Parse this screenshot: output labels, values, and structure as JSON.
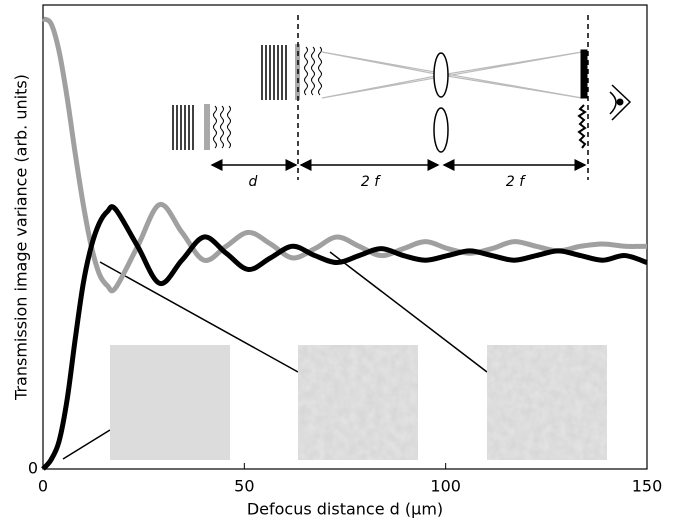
{
  "chart_data": {
    "type": "line",
    "x_label": "Defocus distance d (μm)",
    "y_label": "Transmission image variance (arb. units)",
    "x": [
      0,
      2,
      4,
      6,
      8,
      10,
      12,
      14,
      16,
      18,
      23.5,
      29,
      34.5,
      40,
      45.5,
      51,
      56.5,
      62,
      67.5,
      73,
      78.5,
      84,
      89.5,
      95,
      100.5,
      106,
      111.5,
      117,
      122.5,
      128,
      133.5,
      139,
      144.5,
      150
    ],
    "series": [
      {
        "color": "#000000",
        "values": [
          0,
          0.02,
          0.06,
          0.15,
          0.28,
          0.4,
          0.48,
          0.53,
          0.555,
          0.56,
          0.48,
          0.4,
          0.45,
          0.5,
          0.465,
          0.43,
          0.455,
          0.48,
          0.46,
          0.445,
          0.46,
          0.475,
          0.46,
          0.45,
          0.46,
          0.47,
          0.46,
          0.45,
          0.46,
          0.47,
          0.46,
          0.45,
          0.46,
          0.445
        ]
      },
      {
        "color": "#a0a0a0",
        "values": [
          0.97,
          0.96,
          0.9,
          0.8,
          0.68,
          0.57,
          0.48,
          0.42,
          0.395,
          0.39,
          0.48,
          0.57,
          0.51,
          0.45,
          0.48,
          0.51,
          0.485,
          0.455,
          0.475,
          0.5,
          0.48,
          0.46,
          0.475,
          0.49,
          0.475,
          0.465,
          0.475,
          0.49,
          0.48,
          0.47,
          0.48,
          0.485,
          0.48,
          0.48
        ]
      }
    ],
    "xlim": [
      0,
      150
    ],
    "xticks": [
      0,
      50,
      100,
      150
    ],
    "ylim": [
      0,
      1
    ],
    "yticks": [
      0
    ],
    "annotations": [
      "d",
      "2 f",
      "2 f"
    ]
  }
}
